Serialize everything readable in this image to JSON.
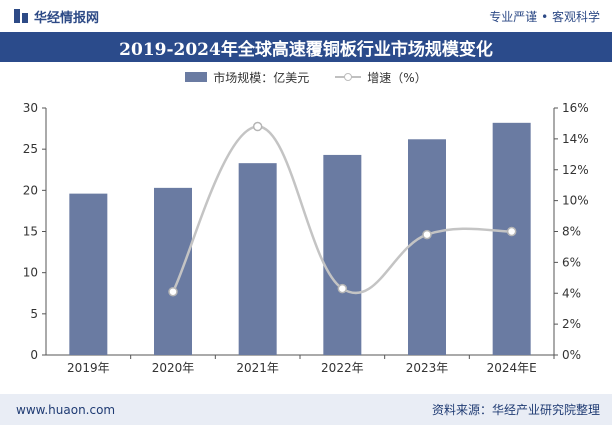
{
  "header": {
    "brand": "华经情报网",
    "slogan": "专业严谨 • 客观科学"
  },
  "footer": {
    "website": "www.huaon.com",
    "source": "资料来源：华经产业研究院整理"
  },
  "colors": {
    "bar": "#6a7ba2",
    "line": "#c4c4c4",
    "marker": "#ffffff",
    "title_bg": "#2b4b8b"
  },
  "chart_data": {
    "type": "bar",
    "title": "2019-2024年全球高速覆铜板行业市场规模变化",
    "categories": [
      "2019年",
      "2020年",
      "2021年",
      "2022年",
      "2023年",
      "2024年E"
    ],
    "series": [
      {
        "name": "市场规模：亿美元",
        "type": "bar",
        "axis": "left",
        "values": [
          19.6,
          20.3,
          23.3,
          24.3,
          26.2,
          28.2
        ]
      },
      {
        "name": "增速（%）",
        "type": "line",
        "axis": "right",
        "values": [
          null,
          4.1,
          14.8,
          4.3,
          7.8,
          8.0
        ]
      }
    ],
    "y_left": {
      "min": 0,
      "max": 30,
      "ticks": [
        "0",
        "5",
        "10",
        "15",
        "20",
        "25",
        "30"
      ]
    },
    "y_right": {
      "min": 0,
      "max": 16,
      "ticks": [
        "0%",
        "2%",
        "4%",
        "6%",
        "8%",
        "10%",
        "12%",
        "14%",
        "16%"
      ]
    },
    "legend": "top-center",
    "grid": false
  }
}
